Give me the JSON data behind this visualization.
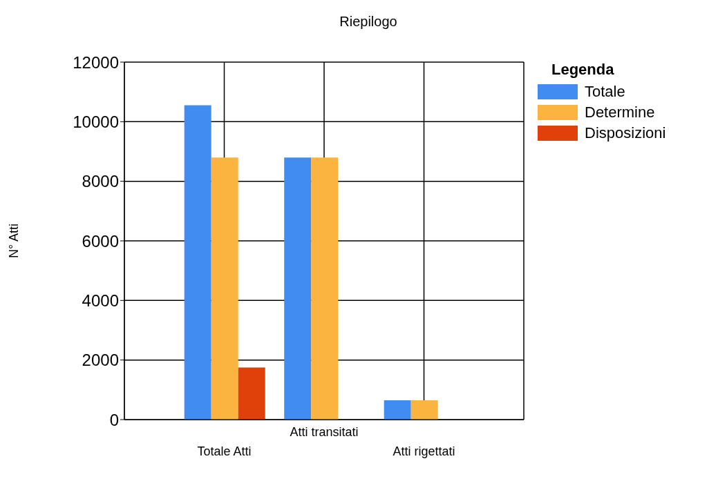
{
  "chart_data": {
    "type": "bar",
    "title": "Riepilogo",
    "ylabel": "N° Atti",
    "legend_title": "Legenda",
    "categories": [
      "Totale Atti",
      "Atti transitati",
      "Atti rigettati"
    ],
    "series": [
      {
        "name": "Totale",
        "color": "#418cf0",
        "values": [
          10550,
          8800,
          650
        ]
      },
      {
        "name": "Determine",
        "color": "#fcb441",
        "values": [
          8800,
          8800,
          650
        ]
      },
      {
        "name": "Disposizioni",
        "color": "#e0400a",
        "values": [
          1750,
          0,
          0
        ]
      }
    ],
    "ylim": [
      0,
      12000
    ],
    "yticks": [
      0,
      2000,
      4000,
      6000,
      8000,
      10000,
      12000
    ],
    "grid": true,
    "legend": "top right"
  }
}
